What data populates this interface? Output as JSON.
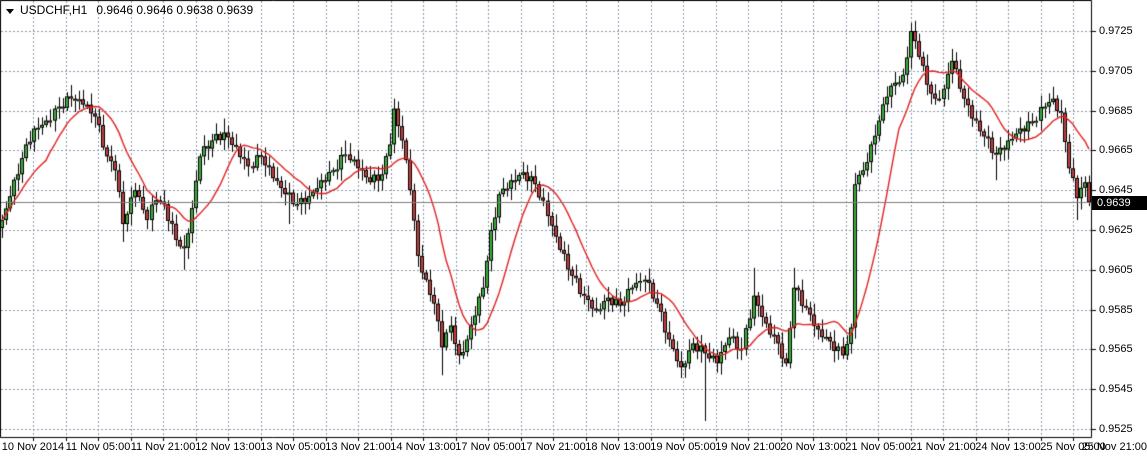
{
  "title": {
    "symbol_period": "USDCHF,H1",
    "ohlc": "0.9646 0.9646 0.9638 0.9639"
  },
  "chart_data": {
    "type": "candlestick",
    "symbol": "USDCHF",
    "timeframe": "H1",
    "title": "USDCHF,H1",
    "last_bar": {
      "open": 0.9646,
      "high": 0.9646,
      "low": 0.9638,
      "close": 0.9639
    },
    "current_price": 0.9639,
    "current_price_label": "0.9639",
    "bars": 270,
    "ma_period": 12,
    "price_axis": {
      "min": 0.9525,
      "max": 0.9725,
      "step": 0.002,
      "ticks": [
        "0.9725",
        "0.9705",
        "0.9685",
        "0.9665",
        "0.9645",
        "0.9625",
        "0.9605",
        "0.9585",
        "0.9565",
        "0.9545",
        "0.9525"
      ],
      "tick_values": [
        0.9725,
        0.9705,
        0.9685,
        0.9665,
        0.9645,
        0.9625,
        0.9605,
        0.9585,
        0.9565,
        0.9545,
        0.9525
      ]
    },
    "time_axis": {
      "bars_per_label": 16,
      "labels": [
        "10 Nov 2014",
        "11 Nov 05:00",
        "11 Nov 21:00",
        "12 Nov 13:00",
        "13 Nov 05:00",
        "13 Nov 21:00",
        "14 Nov 13:00",
        "17 Nov 05:00",
        "17 Nov 21:00",
        "18 Nov 13:00",
        "19 Nov 05:00",
        "19 Nov 21:00",
        "20 Nov 13:00",
        "21 Nov 05:00",
        "21 Nov 21:00",
        "24 Nov 13:00",
        "25 Nov 05:00",
        "25 Nov 21:00"
      ]
    },
    "grid": {
      "visible": true,
      "style": "dashed"
    },
    "legend": "none",
    "close_waypoints": [
      [
        0,
        0.963
      ],
      [
        2,
        0.9642
      ],
      [
        4,
        0.9653
      ],
      [
        6,
        0.9668
      ],
      [
        8,
        0.9676
      ],
      [
        11,
        0.968
      ],
      [
        14,
        0.9687
      ],
      [
        17,
        0.9691
      ],
      [
        20,
        0.9688
      ],
      [
        23,
        0.9682
      ],
      [
        26,
        0.9662
      ],
      [
        28,
        0.9655
      ],
      [
        30,
        0.9628
      ],
      [
        33,
        0.9645
      ],
      [
        36,
        0.963
      ],
      [
        38,
        0.964
      ],
      [
        40,
        0.9638
      ],
      [
        43,
        0.962
      ],
      [
        45,
        0.9616
      ],
      [
        47,
        0.9636
      ],
      [
        49,
        0.9662
      ],
      [
        52,
        0.967
      ],
      [
        55,
        0.9674
      ],
      [
        58,
        0.9667
      ],
      [
        61,
        0.9657
      ],
      [
        64,
        0.9662
      ],
      [
        67,
        0.9651
      ],
      [
        70,
        0.9643
      ],
      [
        73,
        0.9638
      ],
      [
        76,
        0.9642
      ],
      [
        79,
        0.965
      ],
      [
        82,
        0.9655
      ],
      [
        85,
        0.9663
      ],
      [
        88,
        0.9656
      ],
      [
        91,
        0.9649
      ],
      [
        94,
        0.9653
      ],
      [
        96,
        0.9668
      ],
      [
        97,
        0.9686
      ],
      [
        99,
        0.967
      ],
      [
        101,
        0.9645
      ],
      [
        103,
        0.9612
      ],
      [
        105,
        0.96
      ],
      [
        107,
        0.9588
      ],
      [
        109,
        0.9566
      ],
      [
        111,
        0.9577
      ],
      [
        113,
        0.9562
      ],
      [
        115,
        0.957
      ],
      [
        117,
        0.9582
      ],
      [
        119,
        0.9596
      ],
      [
        121,
        0.9625
      ],
      [
        123,
        0.9643
      ],
      [
        126,
        0.965
      ],
      [
        129,
        0.9654
      ],
      [
        132,
        0.9648
      ],
      [
        135,
        0.9632
      ],
      [
        138,
        0.9615
      ],
      [
        141,
        0.9602
      ],
      [
        144,
        0.9592
      ],
      [
        147,
        0.9585
      ],
      [
        150,
        0.9591
      ],
      [
        153,
        0.9587
      ],
      [
        156,
        0.9596
      ],
      [
        159,
        0.96
      ],
      [
        162,
        0.9588
      ],
      [
        165,
        0.957
      ],
      [
        168,
        0.9556
      ],
      [
        171,
        0.9568
      ],
      [
        174,
        0.9563
      ],
      [
        177,
        0.9558
      ],
      [
        180,
        0.9571
      ],
      [
        183,
        0.9565
      ],
      [
        186,
        0.9592
      ],
      [
        189,
        0.9578
      ],
      [
        192,
        0.9568
      ],
      [
        194,
        0.9558
      ],
      [
        196,
        0.9596
      ],
      [
        199,
        0.9586
      ],
      [
        202,
        0.9575
      ],
      [
        205,
        0.9569
      ],
      [
        208,
        0.9562
      ],
      [
        210,
        0.9576
      ],
      [
        211,
        0.9648
      ],
      [
        213,
        0.9655
      ],
      [
        215,
        0.9668
      ],
      [
        217,
        0.968
      ],
      [
        219,
        0.9692
      ],
      [
        221,
        0.9699
      ],
      [
        223,
        0.9703
      ],
      [
        225,
        0.9725
      ],
      [
        227,
        0.9712
      ],
      [
        229,
        0.9698
      ],
      [
        231,
        0.9691
      ],
      [
        233,
        0.9696
      ],
      [
        235,
        0.971
      ],
      [
        237,
        0.9696
      ],
      [
        240,
        0.9681
      ],
      [
        243,
        0.9672
      ],
      [
        246,
        0.9663
      ],
      [
        249,
        0.967
      ],
      [
        252,
        0.9676
      ],
      [
        255,
        0.9679
      ],
      [
        258,
        0.9687
      ],
      [
        260,
        0.9691
      ],
      [
        262,
        0.9684
      ],
      [
        264,
        0.9656
      ],
      [
        266,
        0.9641
      ],
      [
        268,
        0.9649
      ],
      [
        269,
        0.9639
      ]
    ],
    "wick_extremes": [
      {
        "i": 17,
        "high": 0.9697
      },
      {
        "i": 30,
        "low": 0.9619
      },
      {
        "i": 45,
        "low": 0.9605
      },
      {
        "i": 55,
        "high": 0.9681
      },
      {
        "i": 71,
        "low": 0.9628
      },
      {
        "i": 85,
        "high": 0.967
      },
      {
        "i": 97,
        "high": 0.9691
      },
      {
        "i": 109,
        "low": 0.9552
      },
      {
        "i": 174,
        "low": 0.9529
      },
      {
        "i": 186,
        "high": 0.9606
      },
      {
        "i": 196,
        "high": 0.9606
      },
      {
        "i": 225,
        "high": 0.9729
      },
      {
        "i": 235,
        "high": 0.9716
      },
      {
        "i": 246,
        "low": 0.965
      },
      {
        "i": 260,
        "high": 0.9697
      },
      {
        "i": 266,
        "low": 0.963
      }
    ]
  },
  "colors": {
    "background": "#FFFFFF",
    "frame": "#000000",
    "grid": "#8A9BB0",
    "candle_up": "#3BAE3B",
    "candle_down": "#C13F3F",
    "candle_outline": "#000000",
    "wick": "#000000",
    "ma_line": "#E02222",
    "current_price_line": "#7D7D7D",
    "axis_text": "#000000",
    "badge_bg": "#000000",
    "badge_text": "#FFFFFF"
  }
}
